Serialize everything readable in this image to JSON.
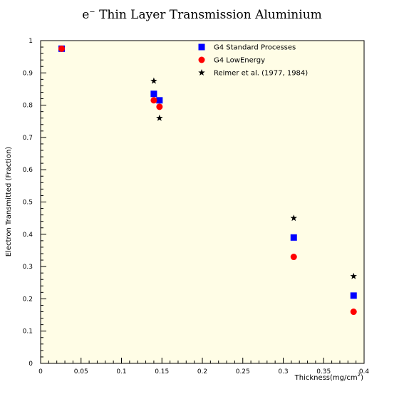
{
  "title": {
    "prefix": "e",
    "superscript": "−",
    "text": " Thin Layer Transmission Aluminium"
  },
  "colors": {
    "plot_background": "#fffde6",
    "standard": "#0000ff",
    "lowenergy": "#ff0000",
    "reference": "#000000"
  },
  "chart_data": {
    "type": "scatter",
    "title": "e− Thin Layer Transmission Aluminium",
    "xlabel": "Thickness(mg/cm²)",
    "ylabel": "Electron Transmitted (Fraction)",
    "xlim": [
      0,
      0.4
    ],
    "ylim": [
      0,
      1
    ],
    "x_ticks": [
      "0",
      "0.05",
      "0.1",
      "0.15",
      "0.2",
      "0.25",
      "0.3",
      "0.35",
      "0.4"
    ],
    "y_ticks": [
      "0",
      "0.1",
      "0.2",
      "0.3",
      "0.4",
      "0.5",
      "0.6",
      "0.7",
      "0.8",
      "0.9",
      "1"
    ],
    "grid": false,
    "legend_position": "top-right",
    "series": [
      {
        "name": "G4 Standard Processes",
        "marker": "square",
        "color": "#0000ff",
        "points": [
          [
            0.026,
            0.975
          ],
          [
            0.14,
            0.835
          ],
          [
            0.147,
            0.815
          ],
          [
            0.313,
            0.39
          ],
          [
            0.387,
            0.21
          ]
        ]
      },
      {
        "name": "G4 LowEnergy",
        "marker": "circle",
        "color": "#ff0000",
        "points": [
          [
            0.026,
            0.975
          ],
          [
            0.14,
            0.815
          ],
          [
            0.147,
            0.795
          ],
          [
            0.313,
            0.33
          ],
          [
            0.387,
            0.16
          ]
        ]
      },
      {
        "name": "Reimer et al. (1977, 1984)",
        "marker": "star",
        "color": "#000000",
        "points": [
          [
            0.14,
            0.875
          ],
          [
            0.147,
            0.76
          ],
          [
            0.313,
            0.45
          ],
          [
            0.387,
            0.27
          ]
        ]
      }
    ]
  }
}
